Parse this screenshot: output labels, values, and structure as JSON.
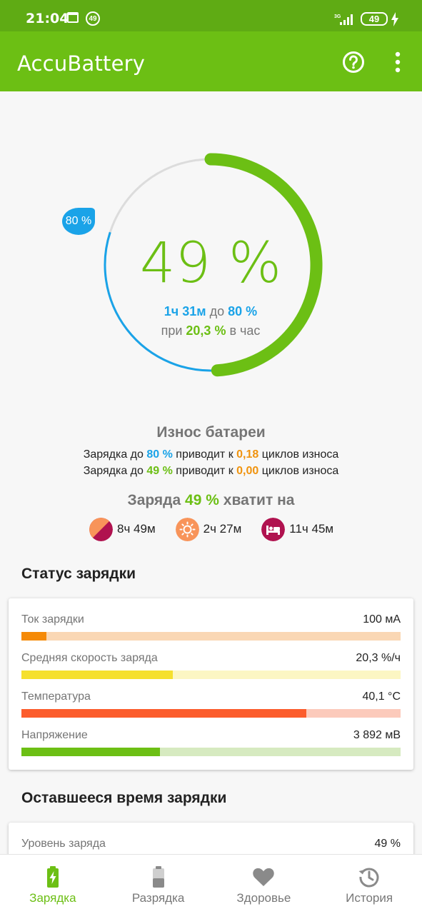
{
  "status_bar": {
    "time": "21:04",
    "notif_badge": "49",
    "network": "3G",
    "battery": "49"
  },
  "app_bar": {
    "title": "AccuBattery"
  },
  "ring": {
    "percent": "49 %",
    "level_fraction": 0.49,
    "target_fraction": 0.8,
    "target_label": "80 %",
    "time_value": "1ч 31м",
    "time_to": "до",
    "time_target": "80 %",
    "rate_prefix": "при",
    "rate_value": "20,3 %",
    "rate_suffix": "в час"
  },
  "wear": {
    "title": "Износ батареи",
    "line1": {
      "p1": "Зарядка до",
      "pct": "80 %",
      "p2": "приводит к",
      "cycles": "0,18",
      "p3": "циклов износа"
    },
    "line2": {
      "p1": "Зарядка до",
      "pct": "49 %",
      "p2": "приводит к",
      "cycles": "0,00",
      "p3": "циклов износа"
    }
  },
  "enough": {
    "prefix": "Заряда",
    "pct": "49 %",
    "suffix": "хватит на"
  },
  "estimates": [
    {
      "value": "8ч 49м",
      "icon": "mixed-usage-icon"
    },
    {
      "value": "2ч 27м",
      "icon": "screen-on-icon"
    },
    {
      "value": "11ч 45м",
      "icon": "sleep-icon"
    }
  ],
  "charging_status": {
    "title": "Статус зарядки",
    "rows": [
      {
        "label": "Ток зарядки",
        "value": "100 мА",
        "fill": 0.066,
        "color": "#f58a07",
        "track": "#fad7b4"
      },
      {
        "label": "Средняя скорость заряда",
        "value": "20,3 %/ч",
        "fill": 0.4,
        "color": "#f5e02e",
        "track": "#fcf6c3"
      },
      {
        "label": "Температура",
        "value": "40,1 °C",
        "fill": 0.752,
        "color": "#fc5c2c",
        "track": "#fccabb"
      },
      {
        "label": "Напряжение",
        "value": "3 892 мВ",
        "fill": 0.365,
        "color": "#6cbf14",
        "track": "#d6eac0"
      }
    ]
  },
  "remaining": {
    "title": "Оставшееся время зарядки",
    "rows": [
      {
        "label": "Уровень заряда",
        "value": "49 %"
      }
    ]
  },
  "nav": {
    "charging": "Зарядка",
    "discharging": "Разрядка",
    "health": "Здоровье",
    "history": "История"
  },
  "colors": {
    "primary": "#6cbf14",
    "status_bar": "#5fab14",
    "accent_blue": "#1aa3e8",
    "accent_orange": "#f0930e"
  }
}
